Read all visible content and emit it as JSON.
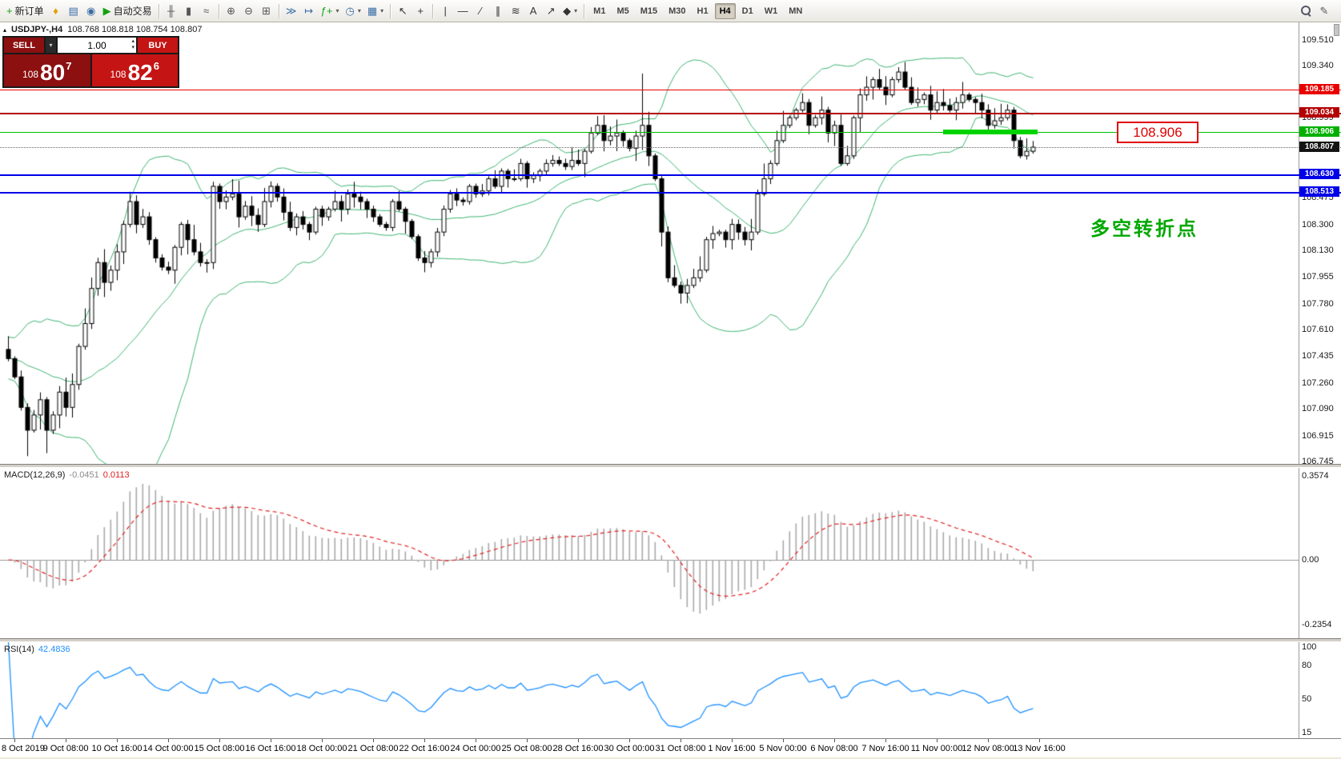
{
  "toolbar": {
    "buttons_left": [
      {
        "name": "new-order-button",
        "glyph": "+",
        "glyph_color": "#17a117",
        "label": "新订单"
      },
      {
        "name": "alerts-icon",
        "glyph": "♦",
        "glyph_color": "#e0a000"
      },
      {
        "name": "market-watch-icon",
        "glyph": "▤",
        "glyph_color": "#3a6ea5"
      },
      {
        "name": "data-window-icon",
        "glyph": "◉",
        "glyph_color": "#3a6ea5"
      },
      {
        "name": "autotrading-button",
        "glyph": "▶",
        "glyph_color": "#12a112",
        "label": "自动交易"
      },
      {
        "sep": true
      },
      {
        "name": "bar-chart-icon",
        "glyph": "╫",
        "glyph_color": "#555555"
      },
      {
        "name": "candlestick-chart-icon",
        "glyph": "▮",
        "glyph_color": "#555555"
      },
      {
        "name": "line-chart-icon",
        "glyph": "≈",
        "glyph_color": "#555555"
      },
      {
        "sep": true
      },
      {
        "name": "zoom-in-icon",
        "glyph": "⊕",
        "glyph_color": "#555555"
      },
      {
        "name": "zoom-out-icon",
        "glyph": "⊖",
        "glyph_color": "#555555"
      },
      {
        "name": "tile-windows-icon",
        "glyph": "⊞",
        "glyph_color": "#555555"
      },
      {
        "sep": true
      },
      {
        "name": "auto-scroll-icon",
        "glyph": "≫",
        "glyph_color": "#3a6ea5"
      },
      {
        "name": "chart-shift-icon",
        "glyph": "↦",
        "glyph_color": "#3a6ea5"
      },
      {
        "name": "indicators-icon",
        "glyph": "ƒ+",
        "glyph_color": "#17a117",
        "caret": true
      },
      {
        "name": "periods-icon",
        "glyph": "◷",
        "glyph_color": "#3a6ea5",
        "caret": true
      },
      {
        "name": "templates-icon",
        "glyph": "▦",
        "glyph_color": "#3a6ea5",
        "caret": true
      },
      {
        "sep": true
      },
      {
        "name": "cursor-icon",
        "glyph": "↖",
        "glyph_color": "#333333"
      },
      {
        "name": "crosshair-icon",
        "glyph": "+",
        "glyph_color": "#333333"
      },
      {
        "sep": true
      },
      {
        "name": "vertical-line-icon",
        "glyph": "|",
        "glyph_color": "#333333"
      },
      {
        "name": "horizontal-line-icon",
        "glyph": "—",
        "glyph_color": "#333333"
      },
      {
        "name": "trendline-icon",
        "glyph": "∕",
        "glyph_color": "#333333"
      },
      {
        "name": "channel-icon",
        "glyph": "∥",
        "glyph_color": "#333333"
      },
      {
        "name": "fibonacci-icon",
        "glyph": "≋",
        "glyph_color": "#333333"
      },
      {
        "name": "text-label-icon",
        "glyph": "A",
        "glyph_color": "#333333"
      },
      {
        "name": "arrows-tool-icon",
        "glyph": "↗",
        "glyph_color": "#333333"
      },
      {
        "name": "shapes-icon",
        "glyph": "◆",
        "glyph_color": "#333333",
        "caret": true
      },
      {
        "sep": true
      }
    ],
    "timeframes": [
      "M1",
      "M5",
      "M15",
      "M30",
      "H1",
      "H4",
      "D1",
      "W1",
      "MN"
    ],
    "active_timeframe": "H4",
    "buttons_right": [
      {
        "name": "search-icon",
        "type": "magnifier"
      },
      {
        "name": "chart-profile-icon",
        "glyph": "✎",
        "glyph_color": "#555555"
      }
    ]
  },
  "chart_title": {
    "collapse_icon": "▴",
    "symbol_period": "USDJPY-,H4",
    "ohlc": "108.768 108.818 108.754 108.807"
  },
  "quote_panel": {
    "sell_label": "SELL",
    "buy_label": "BUY",
    "volume": "1.00",
    "sell_price": {
      "prefix": "108",
      "big": "80",
      "sup": "7"
    },
    "buy_price": {
      "prefix": "108",
      "big": "82",
      "sup": "6"
    }
  },
  "levels": {
    "grid_labels": [
      "109.510",
      "109.340",
      "109.170",
      "108.999",
      "108.475",
      "108.300",
      "108.130",
      "107.955",
      "107.780",
      "107.610",
      "107.435",
      "107.260",
      "107.090",
      "106.915",
      "106.745"
    ],
    "lines": [
      {
        "price": 109.185,
        "label": "109.185",
        "color": "#e80000",
        "label_bg": "#e80000",
        "thickness": 1
      },
      {
        "price": 109.034,
        "label": "109.034",
        "color": "#b40000",
        "label_bg": "#b40000",
        "thickness": 2
      },
      {
        "price": 108.906,
        "label": "108.906",
        "color": "#00c000",
        "label_bg": "#00b000",
        "thickness": 1
      },
      {
        "price": 108.807,
        "label": "108.807",
        "color": "#666666",
        "label_bg": "#141414",
        "thickness": 1,
        "style": "dotted"
      },
      {
        "price": 108.63,
        "label": "108.630",
        "color": "#0000e8",
        "label_bg": "#0000e8",
        "thickness": 2
      },
      {
        "price": 108.513,
        "label": "108.513",
        "color": "#0000e8",
        "label_bg": "#0000e8",
        "thickness": 2
      }
    ],
    "highlight": {
      "price": 108.906,
      "from_bar": 146,
      "to_bar": 160,
      "color": "#00d400"
    }
  },
  "annotation": {
    "text": "多空转折点",
    "callout": "108.906"
  },
  "indicators": {
    "macd": {
      "title": "MACD(12,26,9)",
      "main_value": "-0.0451",
      "signal_value": "0.0113",
      "axis": [
        "0.3574",
        "0.00",
        "-0.2354"
      ]
    },
    "rsi": {
      "title": "RSI(14)",
      "value": "42.4836",
      "axis": [
        "100",
        "80",
        "50",
        "15"
      ]
    }
  },
  "chart_data": {
    "type": "candlestick",
    "symbol": "USDJPY",
    "timeframe": "H4",
    "price_range": [
      106.745,
      109.51
    ],
    "bollinger": {
      "period": 20,
      "deviation": 2
    },
    "macd_params": {
      "fast": 12,
      "slow": 26,
      "signal": 9
    },
    "rsi_params": {
      "period": 14
    },
    "closes": [
      107.42,
      107.3,
      107.1,
      106.95,
      107.05,
      107.15,
      106.95,
      107.05,
      107.2,
      107.1,
      107.25,
      107.5,
      107.65,
      107.88,
      108.05,
      107.92,
      108.0,
      108.12,
      108.3,
      108.45,
      108.3,
      108.35,
      108.2,
      108.08,
      108.02,
      108.0,
      108.15,
      108.3,
      108.2,
      108.12,
      108.05,
      108.05,
      108.55,
      108.45,
      108.48,
      108.5,
      108.35,
      108.42,
      108.36,
      108.3,
      108.45,
      108.55,
      108.48,
      108.38,
      108.28,
      108.35,
      108.3,
      108.25,
      108.4,
      108.35,
      108.4,
      108.45,
      108.4,
      108.5,
      108.48,
      108.45,
      108.4,
      108.35,
      108.3,
      108.28,
      108.45,
      108.4,
      108.32,
      108.22,
      108.08,
      108.05,
      108.12,
      108.25,
      108.4,
      108.5,
      108.46,
      108.45,
      108.55,
      108.5,
      108.52,
      108.6,
      108.55,
      108.65,
      108.6,
      108.6,
      108.7,
      108.6,
      108.62,
      108.65,
      108.7,
      108.72,
      108.7,
      108.68,
      108.72,
      108.7,
      108.78,
      108.9,
      108.95,
      108.85,
      108.88,
      108.9,
      108.85,
      108.8,
      108.88,
      108.95,
      108.75,
      108.6,
      108.25,
      107.95,
      107.9,
      107.85,
      107.9,
      107.95,
      108.0,
      108.2,
      108.24,
      108.25,
      108.2,
      108.3,
      108.25,
      108.2,
      108.25,
      108.5,
      108.6,
      108.7,
      108.85,
      108.95,
      109.0,
      109.05,
      109.1,
      108.95,
      109.0,
      109.05,
      108.9,
      108.95,
      108.7,
      108.75,
      109.0,
      109.15,
      109.2,
      109.25,
      109.2,
      109.15,
      109.25,
      109.3,
      109.2,
      109.1,
      109.12,
      109.15,
      109.05,
      109.1,
      109.08,
      109.05,
      109.1,
      109.15,
      109.12,
      109.1,
      109.05,
      108.95,
      108.98,
      109.0,
      109.05,
      108.85,
      108.75,
      108.78,
      108.807
    ],
    "wick_spikes": [
      {
        "i": 3,
        "low": 106.78
      },
      {
        "i": 6,
        "low": 106.8
      },
      {
        "i": 99,
        "high": 109.29
      }
    ],
    "time_labels": [
      "8 Oct 2019",
      "9 Oct 08:00",
      "10 Oct 16:00",
      "14 Oct 00:00",
      "15 Oct 08:00",
      "16 Oct 16:00",
      "18 Oct 00:00",
      "21 Oct 08:00",
      "22 Oct 16:00",
      "24 Oct 00:00",
      "25 Oct 08:00",
      "28 Oct 16:00",
      "30 Oct 00:00",
      "31 Oct 08:00",
      "1 Nov 16:00",
      "5 Nov 00:00",
      "6 Nov 08:00",
      "7 Nov 16:00",
      "11 Nov 00:00",
      "12 Nov 08:00",
      "13 Nov 16:00"
    ]
  }
}
